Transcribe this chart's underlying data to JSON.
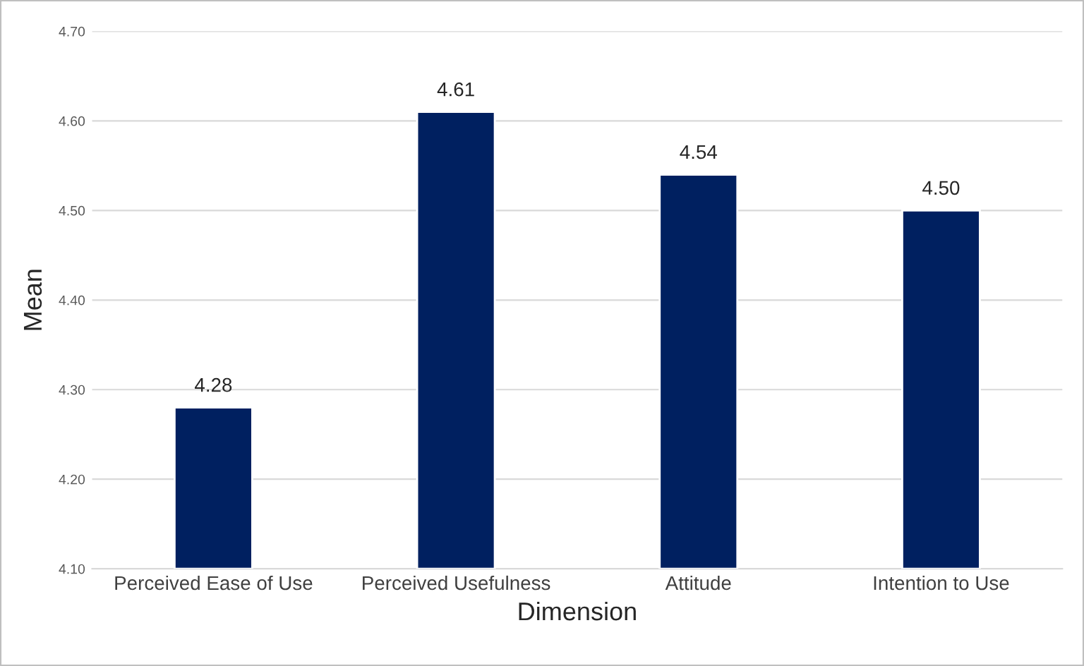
{
  "chart_data": {
    "type": "bar",
    "xlabel": "Dimension",
    "ylabel": "Mean",
    "categories": [
      "Perceived Ease of Use",
      "Perceived Usefulness",
      "Attitude",
      "Intention to Use"
    ],
    "values": [
      4.28,
      4.61,
      4.54,
      4.5
    ],
    "value_labels": [
      "4.28",
      "4.61",
      "4.54",
      "4.50"
    ],
    "color": "#002060",
    "ylim": [
      4.1,
      4.7
    ],
    "yticks": [
      {
        "value": 4.1,
        "label": "4.10"
      },
      {
        "value": 4.2,
        "label": "4.20"
      },
      {
        "value": 4.3,
        "label": "4.30"
      },
      {
        "value": 4.4,
        "label": "4.40"
      },
      {
        "value": 4.5,
        "label": "4.50"
      },
      {
        "value": 4.6,
        "label": "4.60"
      },
      {
        "value": 4.7,
        "label": "4.70"
      }
    ],
    "grid": "y"
  }
}
